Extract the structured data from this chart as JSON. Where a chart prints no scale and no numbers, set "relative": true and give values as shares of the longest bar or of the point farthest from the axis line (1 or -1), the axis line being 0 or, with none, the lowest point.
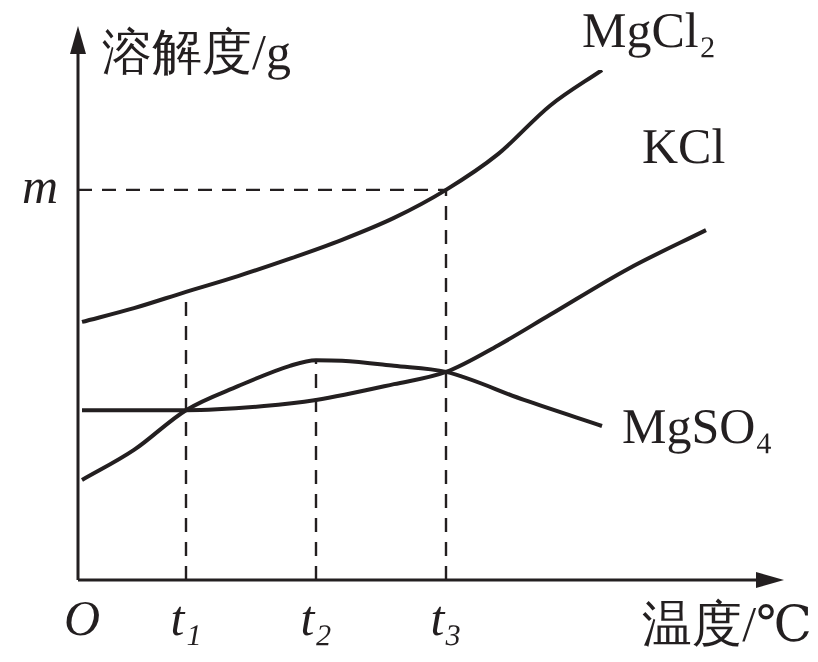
{
  "chart_data": {
    "type": "line",
    "relative": true,
    "xlabel": "温度/℃",
    "ylabel": "溶解度/g",
    "categories": [
      "O",
      null,
      null,
      null,
      "t₁",
      null,
      null,
      null,
      null,
      "t₂",
      null,
      null,
      null,
      null,
      "t₃",
      null,
      null,
      null,
      null,
      null,
      null,
      null,
      null,
      null,
      null
    ],
    "series": [
      {
        "name": "MgCl₂",
        "color": "#231f20",
        "values": [
          0.506,
          null,
          0.533,
          null,
          0.565,
          null,
          0.596,
          null,
          0.63,
          null,
          0.667,
          null,
          0.71,
          null,
          0.765,
          null,
          0.835,
          null,
          0.93,
          null,
          1,
          null,
          null,
          null,
          null
        ]
      },
      {
        "name": "KCl",
        "color": "#231f20",
        "values": [
          0.333,
          null,
          null,
          null,
          0.333,
          null,
          null,
          0.341,
          null,
          0.353,
          null,
          null,
          0.384,
          null,
          0.408,
          null,
          0.46,
          null,
          0.52,
          null,
          null,
          0.61,
          null,
          null,
          0.686
        ]
      },
      {
        "name": "MgSO₄",
        "color": "#231f20",
        "values": [
          0.196,
          null,
          0.255,
          null,
          0.333,
          null,
          0.38,
          null,
          0.42,
          0.431,
          0.43,
          null,
          0.42,
          null,
          0.408,
          null,
          null,
          0.353,
          null,
          null,
          0.302,
          null,
          null,
          null,
          null
        ]
      }
    ],
    "ref_lines": [
      {
        "axis": "y",
        "value": 0.765,
        "label": "m",
        "line_style": "dashed"
      },
      {
        "axis": "x",
        "value": "t₁",
        "line_style": "dashed"
      },
      {
        "axis": "x",
        "value": "t₂",
        "line_style": "dashed"
      },
      {
        "axis": "x",
        "value": "t₃",
        "line_style": "dashed"
      }
    ],
    "grid": false,
    "legend": false,
    "marker": "none",
    "line_style": "solid"
  }
}
